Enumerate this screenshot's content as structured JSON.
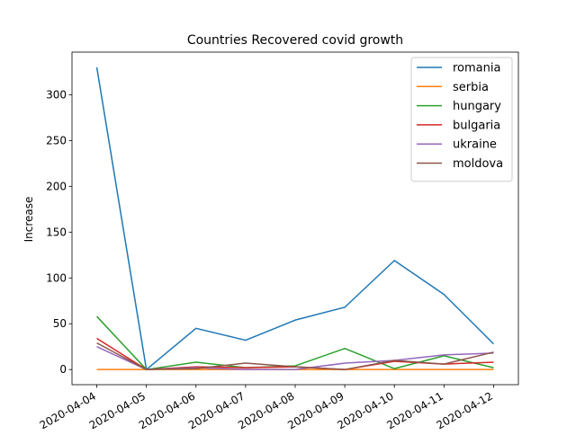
{
  "chart_data": {
    "type": "line",
    "title": "Countries Recovered covid growth",
    "xlabel": "",
    "ylabel": "Increase",
    "ylim": [
      -16.5,
      346.5
    ],
    "yticks": [
      0,
      50,
      100,
      150,
      200,
      250,
      300
    ],
    "x": [
      "2020-04-04",
      "2020-04-05",
      "2020-04-06",
      "2020-04-07",
      "2020-04-08",
      "2020-04-09",
      "2020-04-10",
      "2020-04-11",
      "2020-04-12"
    ],
    "legend_position": "top-right",
    "grid": false,
    "series": [
      {
        "name": "romania",
        "color": "#1f77b4",
        "values": [
          330,
          0,
          45,
          32,
          54,
          68,
          119,
          82,
          28
        ]
      },
      {
        "name": "serbia",
        "color": "#ff7f0e",
        "values": [
          0,
          0,
          0,
          0,
          0,
          0,
          0,
          0,
          0
        ]
      },
      {
        "name": "hungary",
        "color": "#2ca02c",
        "values": [
          58,
          0,
          8,
          2,
          4,
          23,
          1,
          15,
          2
        ]
      },
      {
        "name": "bulgaria",
        "color": "#d62728",
        "values": [
          34,
          0,
          3,
          2,
          3,
          0,
          9,
          6,
          8
        ]
      },
      {
        "name": "ukraine",
        "color": "#9467bd",
        "values": [
          25,
          0,
          2,
          0,
          0,
          7,
          10,
          16,
          18
        ]
      },
      {
        "name": "moldova",
        "color": "#8c564b",
        "values": [
          29,
          0,
          1,
          7,
          3,
          0,
          10,
          6,
          19
        ]
      }
    ]
  }
}
